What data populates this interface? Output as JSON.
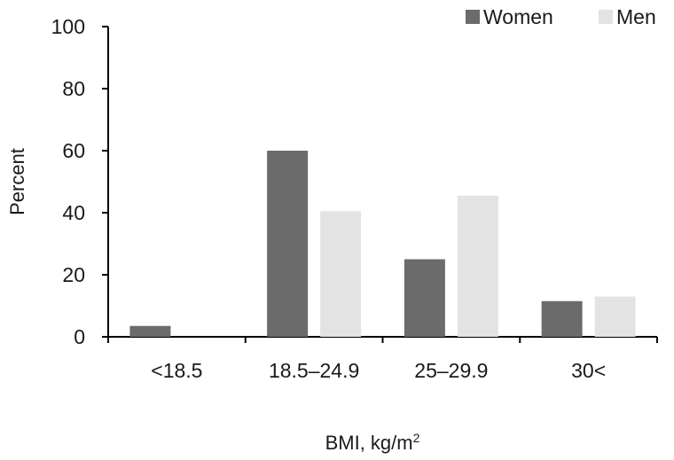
{
  "chart_data": {
    "type": "bar",
    "categories": [
      "<18.5",
      "18.5–24.9",
      "25–29.9",
      "30<"
    ],
    "series": [
      {
        "name": "Women",
        "color": "#6b6b6b",
        "values": [
          3.5,
          60,
          25,
          11.5
        ]
      },
      {
        "name": "Men",
        "color": "#e3e3e3",
        "values": [
          0,
          40.5,
          45.5,
          13
        ]
      }
    ],
    "ylabel": "Percent",
    "xlabel_main": "BMI, kg/m",
    "xlabel_sup": "2",
    "ylim": [
      0,
      100
    ],
    "yticks": [
      0,
      20,
      40,
      60,
      80,
      100
    ],
    "grid": false,
    "legend_position": "top-right"
  }
}
